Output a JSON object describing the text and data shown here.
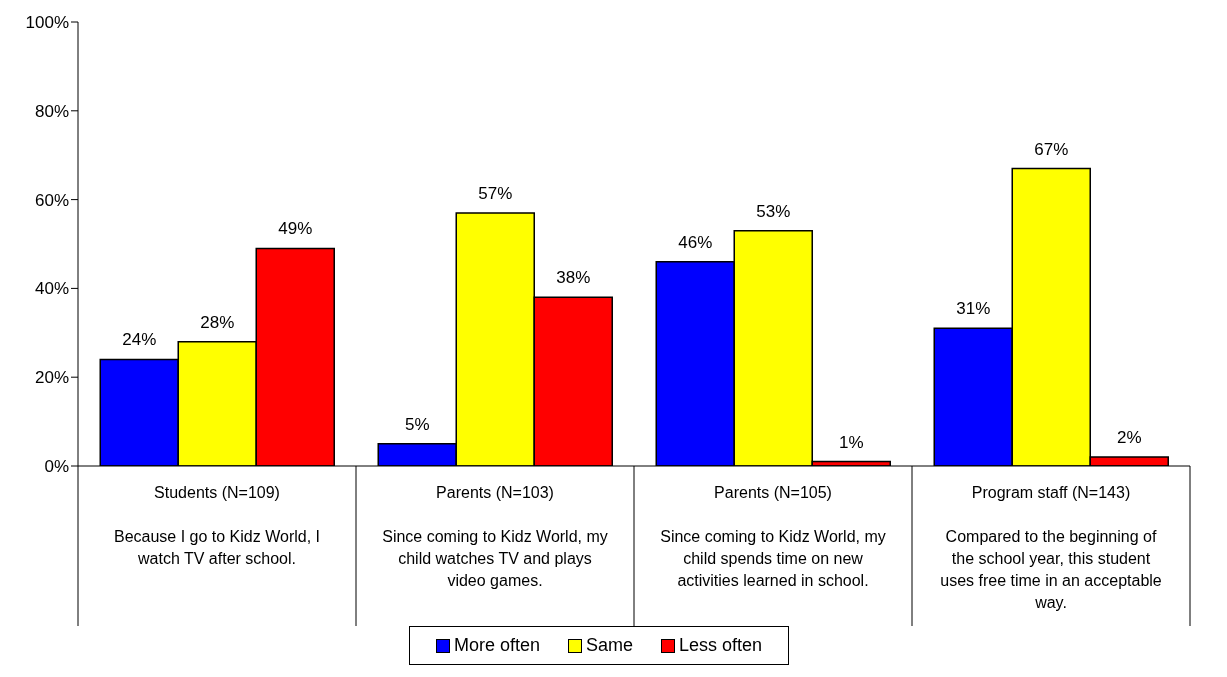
{
  "chart_data": {
    "type": "bar",
    "categories": [
      "Students (N=109)\nBecause I go to Kidz World, I watch TV after school.",
      "Parents (N=103)\nSince coming to Kidz World, my child watches TV and plays video games.",
      "Parents (N=105)\nSince coming to Kidz World, my child spends time on new activities learned in school.",
      "Program staff (N=143)\nCompared to the beginning of the school year, this student uses free time in an acceptable way."
    ],
    "series": [
      {
        "name": "More often",
        "color": "#0000ff",
        "values": [
          24,
          5,
          46,
          31
        ],
        "value_labels": [
          "24%",
          "5%",
          "46%",
          "31%"
        ]
      },
      {
        "name": "Same",
        "color": "#ffff00",
        "values": [
          28,
          57,
          53,
          67
        ],
        "value_labels": [
          "28%",
          "57%",
          "53%",
          "67%"
        ]
      },
      {
        "name": "Less often",
        "color": "#ff0000",
        "values": [
          49,
          38,
          1,
          2
        ],
        "value_labels": [
          "49%",
          "38%",
          "1%",
          "2%"
        ]
      }
    ],
    "ylim": [
      0,
      100
    ],
    "yticks": [
      {
        "value": 0,
        "label": "0%"
      },
      {
        "value": 20,
        "label": "20%"
      },
      {
        "value": 40,
        "label": "40%"
      },
      {
        "value": 60,
        "label": "60%"
      },
      {
        "value": 80,
        "label": "80%"
      },
      {
        "value": 100,
        "label": "100%"
      }
    ],
    "grid": false,
    "legend": "bottom"
  }
}
